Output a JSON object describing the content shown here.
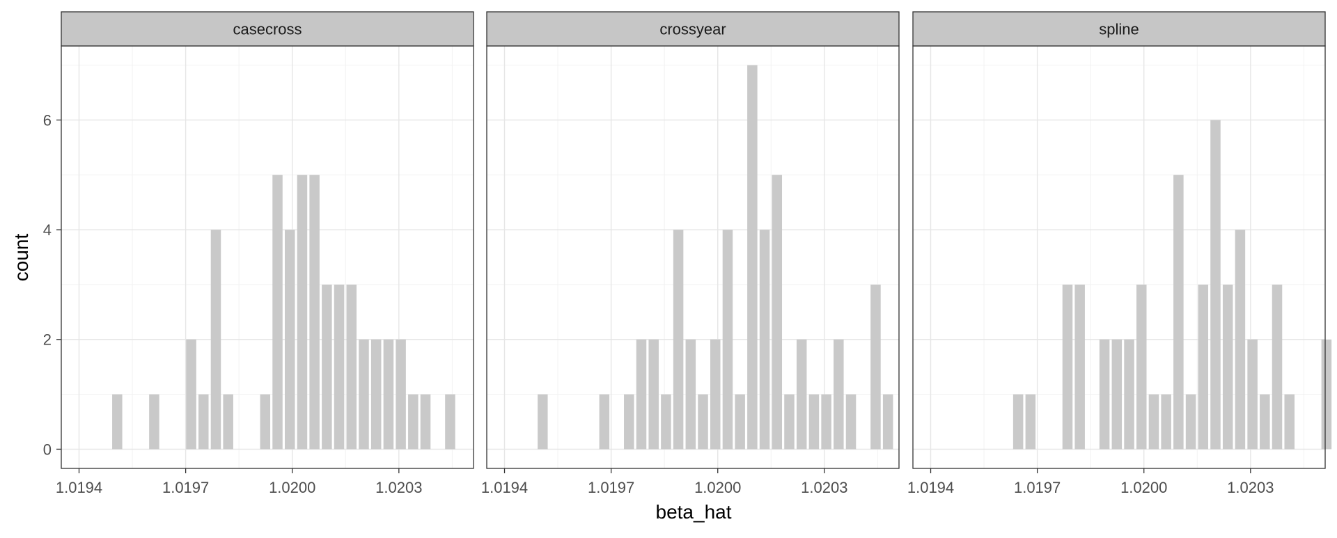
{
  "chart_data": {
    "type": "bar",
    "xlabel": "beta_hat",
    "ylabel": "count",
    "xlim": [
      1.01935,
      1.02051
    ],
    "ylim": [
      -0.35,
      7.35
    ],
    "x_ticks": [
      1.0194,
      1.0197,
      1.02,
      1.0203
    ],
    "x_tick_labels": [
      "1.0194",
      "1.0197",
      "1.0200",
      "1.0203"
    ],
    "y_ticks": [
      0,
      2,
      4,
      6
    ],
    "y_tick_labels": [
      "0",
      "2",
      "4",
      "6"
    ],
    "grid": true,
    "bar_color": "#c9c9c9",
    "bin_start": 1.01949,
    "bin_width": 3.47e-05,
    "panels": [
      {
        "title": "casecross",
        "counts": [
          1,
          0,
          0,
          1,
          0,
          0,
          2,
          1,
          4,
          1,
          0,
          0,
          1,
          5,
          4,
          5,
          5,
          3,
          3,
          3,
          2,
          2,
          2,
          2,
          1,
          1,
          0,
          1
        ]
      },
      {
        "title": "crossyear",
        "counts": [
          1,
          0,
          0,
          0,
          0,
          1,
          0,
          1,
          2,
          2,
          1,
          4,
          2,
          1,
          2,
          4,
          1,
          7,
          4,
          5,
          1,
          2,
          1,
          1,
          2,
          1,
          0,
          3,
          1
        ]
      },
      {
        "title": "spline",
        "counts": [
          0,
          0,
          0,
          0,
          1,
          1,
          0,
          0,
          3,
          3,
          0,
          2,
          2,
          2,
          3,
          1,
          1,
          5,
          1,
          3,
          6,
          3,
          4,
          2,
          1,
          3,
          1,
          0,
          0,
          2
        ]
      }
    ]
  }
}
